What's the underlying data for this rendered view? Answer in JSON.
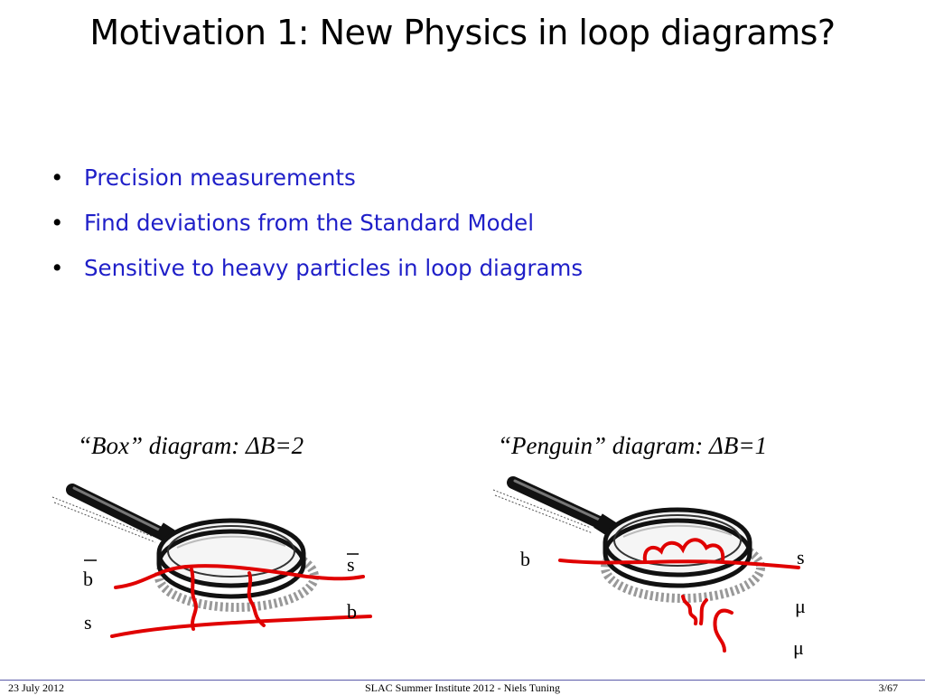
{
  "slide": {
    "title": "Motivation 1: New Physics in loop diagrams?",
    "bullets": [
      {
        "marker": "•",
        "text": "Precision measurements"
      },
      {
        "marker": "•",
        "text": "Find deviations from the Standard Model"
      },
      {
        "marker": "•",
        "text": "Sensitive to heavy particles in loop diagrams"
      }
    ],
    "text_color": "#1f1fc8",
    "line_color": "#e00000"
  },
  "box_diagram": {
    "caption": "“Box” diagram: ΔB=2",
    "labels": {
      "b_bar": "b",
      "s": "s",
      "s_bar": "s",
      "b": "b"
    }
  },
  "penguin_diagram": {
    "caption": "“Penguin” diagram: ΔB=1",
    "labels": {
      "b": "b",
      "s": "s",
      "mu1": "μ",
      "mu2": "μ"
    }
  },
  "footer": {
    "date": "23 July 2012",
    "center": "SLAC Summer Institute 2012 - Niels Tuning",
    "page": "3/67"
  }
}
